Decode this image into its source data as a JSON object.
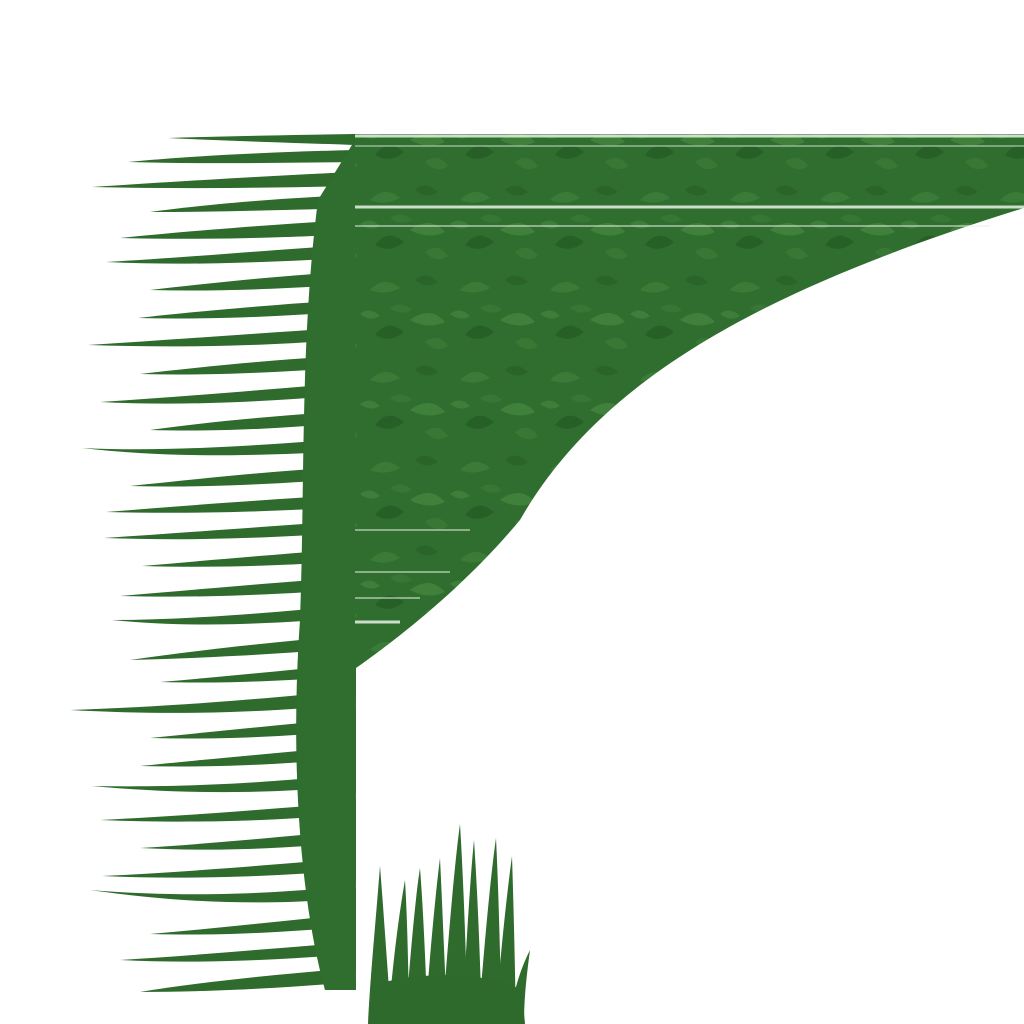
{
  "sprite_sheet": {
    "type": "grass-tile-texture",
    "colors": {
      "background": "#ffffff",
      "grass_base": "#2f6e2e",
      "grass_light": "#4a8e45",
      "grass_dark": "#245a23",
      "blade": "#2f6b2c",
      "blade_highlight": "#3f8a3a",
      "seam": "#e8f2e6"
    },
    "pieces": [
      {
        "name": "grass-corner-slope-tile",
        "icon": "grass-fill-texture"
      },
      {
        "name": "grass-fringe-left-edge",
        "icon": "grass-blade-fringe"
      },
      {
        "name": "grass-tuft-sprite",
        "icon": "grass-tuft"
      }
    ]
  }
}
